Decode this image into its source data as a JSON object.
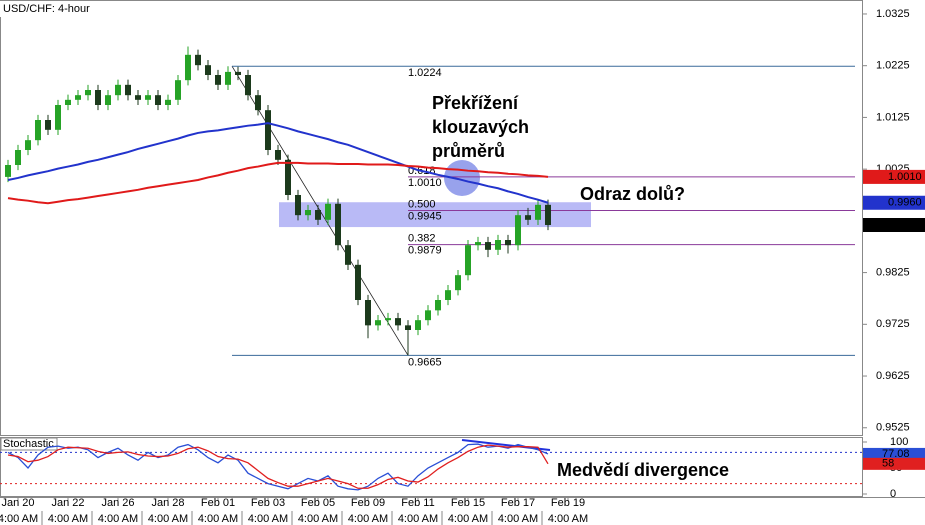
{
  "chart_data": [
    {
      "type": "candlestick",
      "title": "USD/CHF: 4-hour",
      "ylim": [
        0.9511,
        1.0352
      ],
      "yticks": [
        0.9525,
        0.9625,
        0.9725,
        0.9825,
        1.0025,
        1.0125,
        1.0225,
        1.0325
      ],
      "xticks": [
        {
          "value": 1,
          "label": "Jan 20"
        },
        {
          "value": 6,
          "label": "Jan 22"
        },
        {
          "value": 11,
          "label": "Jan 26"
        },
        {
          "value": 16,
          "label": "Jan 28"
        },
        {
          "value": 21,
          "label": "Feb 01"
        },
        {
          "value": 26,
          "label": "Feb 03"
        },
        {
          "value": 31,
          "label": "Feb 05"
        },
        {
          "value": 36,
          "label": "Feb 09"
        },
        {
          "value": 41,
          "label": "Feb 11"
        },
        {
          "value": 46,
          "label": "Feb 15"
        },
        {
          "value": 51,
          "label": "Feb 17"
        },
        {
          "value": 56,
          "label": "Feb 19"
        }
      ],
      "xtick_sublabel": "4:00 AM",
      "up_color": "#26a326",
      "down_color": "#1c3a1c",
      "open": [
        1.001,
        1.0033,
        1.0062,
        1.0081,
        1.012,
        1.0101,
        1.0149,
        1.0159,
        1.0168,
        1.0178,
        1.0149,
        1.0168,
        1.0188,
        1.0168,
        1.0159,
        1.0168,
        1.0149,
        1.0159,
        1.0197,
        1.0246,
        1.0226,
        1.0207,
        1.0188,
        1.0213,
        1.0207,
        1.0168,
        1.0139,
        1.0062,
        1.0043,
        0.9975,
        0.9936,
        0.9946,
        0.9927,
        0.9958,
        0.9878,
        0.984,
        0.9772,
        0.9723,
        0.9733,
        0.9737,
        0.9723,
        0.9714,
        0.9733,
        0.9752,
        0.9772,
        0.9791,
        0.982,
        0.9878,
        0.9884,
        0.9869,
        0.9888,
        0.9878,
        0.9936,
        0.9927,
        0.9956
      ],
      "high": [
        1.0043,
        1.0072,
        1.0091,
        1.013,
        1.013,
        1.0159,
        1.0169,
        1.0178,
        1.0188,
        1.0188,
        1.0178,
        1.0198,
        1.0198,
        1.0178,
        1.0178,
        1.0178,
        1.0169,
        1.0207,
        1.0262,
        1.0256,
        1.0236,
        1.0217,
        1.0224,
        1.0223,
        1.0217,
        1.0178,
        1.0149,
        1.0072,
        1.0053,
        0.9985,
        0.9956,
        0.9956,
        0.9968,
        0.9968,
        0.9888,
        0.985,
        0.9782,
        0.9743,
        0.9747,
        0.9747,
        0.9733,
        0.9743,
        0.9762,
        0.9782,
        0.9801,
        0.983,
        0.9888,
        0.9894,
        0.9894,
        0.9898,
        0.9898,
        0.9946,
        0.995,
        0.9966,
        0.9966
      ],
      "low": [
        1.0,
        1.0023,
        1.0052,
        1.0071,
        1.0091,
        1.0091,
        1.0139,
        1.0149,
        1.0158,
        1.0139,
        1.0139,
        1.0158,
        1.0158,
        1.0149,
        1.0149,
        1.0139,
        1.0139,
        1.0149,
        1.0187,
        1.0216,
        1.0197,
        1.0178,
        1.0178,
        1.0197,
        1.0158,
        1.0129,
        1.0052,
        1.0033,
        0.9965,
        0.9926,
        0.9926,
        0.9917,
        0.9917,
        0.9868,
        0.983,
        0.9762,
        0.9698,
        0.9713,
        0.9723,
        0.9713,
        0.9665,
        0.9704,
        0.9723,
        0.9742,
        0.9762,
        0.9781,
        0.981,
        0.9868,
        0.9855,
        0.9859,
        0.9862,
        0.9868,
        0.9917,
        0.9917,
        0.9907
      ],
      "close": [
        1.0033,
        1.0062,
        1.0081,
        1.012,
        1.0101,
        1.0149,
        1.0159,
        1.0168,
        1.0178,
        1.0149,
        1.0168,
        1.0188,
        1.0168,
        1.0159,
        1.0168,
        1.0149,
        1.0159,
        1.0197,
        1.0246,
        1.0226,
        1.0207,
        1.0188,
        1.0213,
        1.0207,
        1.0168,
        1.0139,
        1.0062,
        1.0043,
        0.9975,
        0.9936,
        0.9946,
        0.9927,
        0.9958,
        0.9878,
        0.984,
        0.9772,
        0.9723,
        0.9733,
        0.9737,
        0.9723,
        0.9714,
        0.9733,
        0.9752,
        0.9772,
        0.9791,
        0.982,
        0.9878,
        0.9884,
        0.9869,
        0.9888,
        0.9878,
        0.9936,
        0.9927,
        0.9956,
        0.9917
      ],
      "moving_averages": [
        {
          "color": "#2233cc",
          "value_label": "0.9960",
          "values": [
            1.0004,
            1.0008,
            1.0013,
            1.0017,
            1.0021,
            1.0026,
            1.003,
            1.0034,
            1.0039,
            1.0043,
            1.0048,
            1.0053,
            1.0058,
            1.0064,
            1.0069,
            1.0074,
            1.0079,
            1.0084,
            1.009,
            1.0095,
            1.0098,
            1.01,
            1.0103,
            1.0106,
            1.0109,
            1.0111,
            1.0114,
            1.0109,
            1.0104,
            1.0098,
            1.0093,
            1.0088,
            1.0083,
            1.0077,
            1.0072,
            1.0065,
            1.0058,
            1.0051,
            1.0044,
            1.0037,
            1.003,
            1.0023,
            1.0019,
            1.0014,
            1.001,
            1.0006,
            1.0001,
            0.9997,
            0.9992,
            0.9988,
            0.9982,
            0.9977,
            0.9971,
            0.9966,
            0.996
          ]
        },
        {
          "color": "#e01a1a",
          "value_label": "1.0010",
          "values": [
            0.9969,
            0.9966,
            0.9964,
            0.9961,
            0.9959,
            0.9962,
            0.9965,
            0.9967,
            0.997,
            0.9973,
            0.9976,
            0.9979,
            0.9982,
            0.9985,
            0.9989,
            0.9992,
            0.9995,
            0.9998,
            1.0001,
            1.0004,
            1.0009,
            1.0013,
            1.0018,
            1.0022,
            1.0027,
            1.003,
            1.0034,
            1.0037,
            1.0037,
            1.0037,
            1.0036,
            1.0036,
            1.0036,
            1.0035,
            1.0035,
            1.0035,
            1.0034,
            1.0034,
            1.0034,
            1.0033,
            1.0031,
            1.003,
            1.0028,
            1.0027,
            1.0025,
            1.0024,
            1.0022,
            1.0021,
            1.0019,
            1.0018,
            1.0016,
            1.0015,
            1.0013,
            1.0012,
            1.001
          ]
        }
      ],
      "fib_high": 1.0224,
      "fib_low": 0.9665,
      "fib_levels": [
        {
          "ratio": 0.618,
          "price": {
            "value": 1.001,
            "label": "1.0010"
          }
        },
        {
          "ratio": {
            "value": 0.5,
            "label": "0.500"
          },
          "price": 0.9945
        },
        {
          "ratio": 0.382,
          "price": 0.9879
        }
      ],
      "zone": [
        0.9913,
        0.9961
      ],
      "annotations": [
        "Překřížení",
        "klouzavých",
        "průměrů",
        "Odraz dolů?"
      ]
    },
    {
      "type": "stochastic",
      "title": "Stochastic",
      "ylim": [
        0,
        100
      ],
      "yticks": [
        0,
        50,
        100
      ],
      "levels": [
        20,
        80
      ],
      "series": [
        {
          "color": "#2a4fd6",
          "values": [
            80,
            70,
            50,
            75,
            90,
            92,
            88,
            90,
            85,
            70,
            80,
            88,
            75,
            65,
            80,
            70,
            75,
            90,
            95,
            85,
            70,
            60,
            75,
            65,
            40,
            30,
            20,
            15,
            10,
            20,
            30,
            25,
            35,
            15,
            10,
            8,
            15,
            30,
            40,
            20,
            15,
            35,
            50,
            60,
            70,
            80,
            95,
            96,
            90,
            92,
            88,
            95,
            90,
            85,
            77.08
          ]
        },
        {
          "color": "#e02020",
          "values": [
            75,
            72,
            62,
            65,
            72,
            85,
            90,
            89,
            88,
            82,
            78,
            80,
            81,
            76,
            73,
            72,
            73,
            78,
            87,
            90,
            83,
            72,
            68,
            67,
            60,
            45,
            30,
            22,
            15,
            15,
            20,
            25,
            30,
            25,
            20,
            11,
            11,
            18,
            28,
            32,
            25,
            23,
            33,
            48,
            60,
            70,
            82,
            90,
            94,
            92,
            90,
            91,
            91,
            90,
            58
          ]
        }
      ],
      "annotation": "Medvědí divergence"
    }
  ]
}
